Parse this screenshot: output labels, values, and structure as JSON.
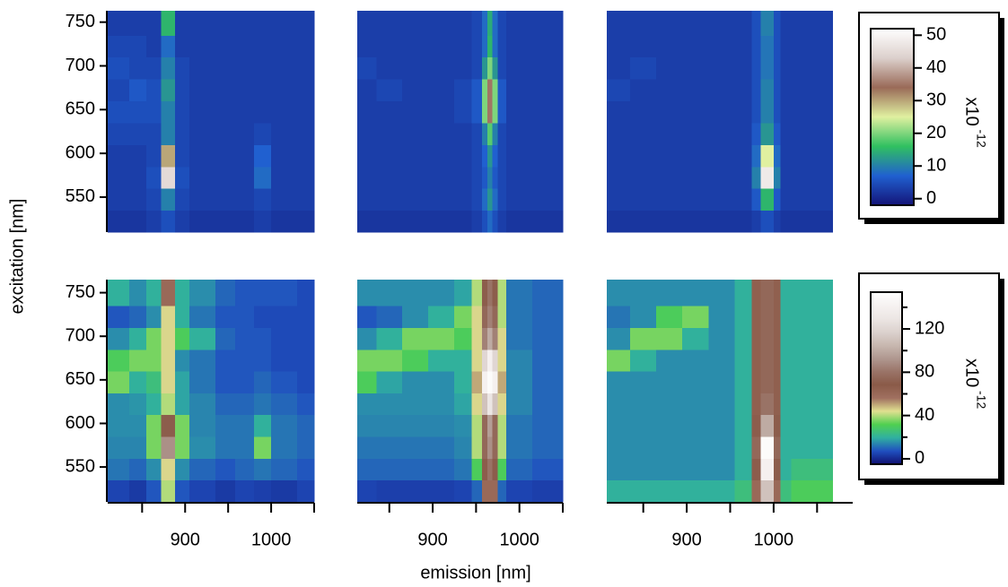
{
  "xlabel": "emission [nm]",
  "ylabel": "excitation [nm]",
  "chart_data": [
    {
      "type": "heatmap",
      "xlim": [
        810,
        1050
      ],
      "ylim": [
        510,
        763
      ],
      "zlim": [
        -2,
        52
      ],
      "colors": [
        "#141478",
        "#2060d0",
        "#30c060",
        "#e0f0a0",
        "#9a6a58",
        "#dcd0cc",
        "#ffffff"
      ],
      "x": [
        810,
        835,
        855,
        872,
        888,
        905,
        935,
        958,
        980,
        1000,
        1030,
        1050
      ],
      "y": [
        510,
        535,
        560,
        585,
        610,
        635,
        660,
        685,
        710,
        735,
        763
      ],
      "yticks": [
        550,
        600,
        650,
        700,
        750
      ],
      "z": [
        [
          2,
          2,
          3,
          5,
          3,
          2,
          2,
          2,
          3,
          2,
          2
        ],
        [
          3,
          3,
          4,
          10,
          4,
          3,
          3,
          3,
          4,
          3,
          3
        ],
        [
          3,
          3,
          5,
          45,
          5,
          3,
          3,
          3,
          8,
          3,
          3
        ],
        [
          3,
          3,
          4,
          30,
          4,
          3,
          3,
          3,
          7,
          3,
          3
        ],
        [
          4,
          4,
          4,
          10,
          4,
          3,
          3,
          3,
          4,
          3,
          3
        ],
        [
          5,
          5,
          5,
          10,
          4,
          3,
          3,
          3,
          3,
          3,
          3
        ],
        [
          4,
          6,
          5,
          12,
          4,
          3,
          3,
          3,
          3,
          3,
          3
        ],
        [
          5,
          4,
          4,
          10,
          4,
          3,
          3,
          3,
          3,
          3,
          3
        ],
        [
          4,
          4,
          3,
          8,
          3,
          3,
          3,
          3,
          3,
          3,
          3
        ],
        [
          3,
          3,
          3,
          15,
          3,
          3,
          3,
          3,
          3,
          3,
          3
        ]
      ]
    },
    {
      "type": "heatmap",
      "xlim": [
        813,
        1050
      ],
      "ylim": [
        510,
        763
      ],
      "zlim": [
        -2,
        52
      ],
      "colors": [
        "#141478",
        "#2060d0",
        "#30c060",
        "#e0f0a0",
        "#9a6a58",
        "#dcd0cc",
        "#ffffff"
      ],
      "x": [
        813,
        835,
        865,
        895,
        925,
        945,
        957,
        963,
        969,
        975,
        985,
        1015,
        1035,
        1050
      ],
      "y": [
        510,
        535,
        560,
        585,
        610,
        635,
        660,
        685,
        710,
        735,
        763
      ],
      "z": [
        [
          2,
          2,
          2,
          2,
          2,
          3,
          5,
          8,
          5,
          3,
          2,
          2,
          2
        ],
        [
          3,
          3,
          3,
          3,
          3,
          4,
          8,
          12,
          8,
          4,
          3,
          3,
          3
        ],
        [
          3,
          3,
          3,
          3,
          3,
          4,
          6,
          10,
          6,
          4,
          3,
          3,
          3
        ],
        [
          3,
          3,
          3,
          3,
          3,
          4,
          7,
          12,
          7,
          4,
          3,
          3,
          3
        ],
        [
          3,
          3,
          3,
          3,
          3,
          4,
          10,
          18,
          10,
          4,
          3,
          3,
          3
        ],
        [
          3,
          3,
          3,
          3,
          4,
          6,
          20,
          35,
          20,
          6,
          3,
          3,
          3
        ],
        [
          3,
          4,
          3,
          3,
          4,
          6,
          20,
          35,
          20,
          6,
          3,
          3,
          3
        ],
        [
          4,
          3,
          3,
          3,
          3,
          4,
          12,
          20,
          12,
          4,
          3,
          3,
          3
        ],
        [
          3,
          3,
          3,
          3,
          3,
          4,
          8,
          15,
          8,
          4,
          3,
          3,
          3
        ],
        [
          3,
          3,
          3,
          3,
          3,
          4,
          8,
          14,
          8,
          4,
          3,
          3,
          3
        ]
      ]
    },
    {
      "type": "heatmap",
      "xlim": [
        808,
        1091
      ],
      "ylim": [
        510,
        763
      ],
      "zlim": [
        -2,
        52
      ],
      "colors": [
        "#141478",
        "#2060d0",
        "#30c060",
        "#e0f0a0",
        "#9a6a58",
        "#dcd0cc",
        "#ffffff"
      ],
      "x": [
        808,
        835,
        865,
        895,
        925,
        955,
        975,
        985,
        993,
        1000,
        1008,
        1020,
        1045,
        1068
      ],
      "y": [
        510,
        535,
        560,
        585,
        610,
        635,
        660,
        685,
        710,
        735,
        763
      ],
      "z": [
        [
          2,
          2,
          2,
          2,
          2,
          2,
          3,
          5,
          5,
          3,
          2,
          2,
          2
        ],
        [
          3,
          3,
          3,
          3,
          3,
          3,
          6,
          15,
          15,
          6,
          3,
          3,
          3
        ],
        [
          3,
          3,
          3,
          3,
          3,
          3,
          10,
          48,
          48,
          10,
          3,
          3,
          3
        ],
        [
          3,
          3,
          3,
          3,
          3,
          3,
          8,
          25,
          25,
          8,
          3,
          3,
          3
        ],
        [
          3,
          3,
          3,
          3,
          3,
          3,
          6,
          12,
          12,
          6,
          3,
          3,
          3
        ],
        [
          3,
          3,
          3,
          3,
          3,
          3,
          5,
          10,
          10,
          5,
          3,
          3,
          3
        ],
        [
          4,
          3,
          3,
          3,
          3,
          3,
          5,
          10,
          10,
          5,
          3,
          3,
          3
        ],
        [
          3,
          4,
          3,
          3,
          3,
          3,
          5,
          9,
          9,
          5,
          3,
          3,
          3
        ],
        [
          3,
          3,
          3,
          3,
          3,
          3,
          5,
          9,
          9,
          5,
          3,
          3,
          3
        ],
        [
          3,
          3,
          3,
          3,
          3,
          3,
          5,
          10,
          10,
          5,
          3,
          3,
          3
        ]
      ]
    },
    {
      "type": "heatmap",
      "xlim": [
        810,
        1050
      ],
      "ylim": [
        510,
        765
      ],
      "zlim": [
        -5,
        154
      ],
      "colors": [
        "#101070",
        "#2050c0",
        "#30b0a0",
        "#50d050",
        "#e0e090",
        "#a07060",
        "#8a5a48",
        "#9a7468",
        "#b09890",
        "#c8b8b0",
        "#dcd2ce",
        "#ece6e4",
        "#f6f2f1",
        "#ffffff"
      ],
      "x": [
        810,
        835,
        855,
        872,
        888,
        905,
        935,
        958,
        980,
        1000,
        1030,
        1050
      ],
      "y": [
        510,
        535,
        560,
        585,
        610,
        635,
        660,
        685,
        710,
        735,
        765
      ],
      "yticks": [
        550,
        600,
        650,
        700,
        750
      ],
      "xticks": [
        900,
        1000
      ],
      "xminor": [
        850,
        950,
        1050
      ],
      "z": [
        [
          5,
          3,
          8,
          40,
          8,
          5,
          3,
          5,
          4,
          3,
          5
        ],
        [
          12,
          10,
          15,
          45,
          15,
          10,
          8,
          10,
          12,
          10,
          8
        ],
        [
          14,
          14,
          35,
          90,
          35,
          15,
          12,
          12,
          35,
          12,
          10
        ],
        [
          15,
          15,
          35,
          70,
          35,
          14,
          12,
          12,
          20,
          12,
          10
        ],
        [
          15,
          16,
          20,
          40,
          18,
          14,
          10,
          10,
          12,
          10,
          8
        ],
        [
          35,
          20,
          25,
          45,
          18,
          12,
          8,
          8,
          10,
          8,
          6
        ],
        [
          30,
          35,
          35,
          45,
          15,
          12,
          8,
          8,
          8,
          6,
          6
        ],
        [
          15,
          20,
          35,
          45,
          30,
          20,
          10,
          8,
          8,
          6,
          6
        ],
        [
          8,
          10,
          15,
          45,
          20,
          12,
          8,
          8,
          6,
          6,
          6
        ],
        [
          20,
          15,
          20,
          60,
          20,
          15,
          10,
          8,
          8,
          8,
          6
        ]
      ]
    },
    {
      "type": "heatmap",
      "xlim": [
        813,
        1050
      ],
      "ylim": [
        510,
        765
      ],
      "zlim": [
        -5,
        154
      ],
      "colors": [
        "#101070",
        "#2050c0",
        "#30b0a0",
        "#50d050",
        "#e0e090",
        "#a07060",
        "#8a5a48",
        "#9a7468",
        "#b09890",
        "#c8b8b0",
        "#dcd2ce",
        "#ece6e4",
        "#f6f2f1",
        "#ffffff"
      ],
      "x": [
        813,
        835,
        865,
        895,
        925,
        945,
        957,
        963,
        969,
        975,
        985,
        1015,
        1035,
        1050
      ],
      "y": [
        510,
        535,
        560,
        585,
        610,
        635,
        660,
        685,
        710,
        735,
        765
      ],
      "xticks": [
        900,
        1000
      ],
      "xminor": [
        850,
        950,
        1050
      ],
      "z": [
        [
          5,
          4,
          4,
          4,
          5,
          10,
          60,
          60,
          60,
          10,
          5,
          4,
          4
        ],
        [
          10,
          10,
          10,
          10,
          12,
          30,
          70,
          80,
          70,
          30,
          10,
          8,
          8
        ],
        [
          12,
          12,
          12,
          12,
          14,
          40,
          75,
          90,
          75,
          40,
          12,
          10,
          10
        ],
        [
          14,
          14,
          14,
          14,
          15,
          40,
          75,
          95,
          75,
          40,
          12,
          10,
          10
        ],
        [
          15,
          15,
          15,
          15,
          18,
          45,
          110,
          130,
          110,
          45,
          14,
          10,
          10
        ],
        [
          30,
          18,
          15,
          15,
          20,
          50,
          140,
          150,
          140,
          50,
          14,
          10,
          10
        ],
        [
          35,
          35,
          30,
          20,
          20,
          45,
          120,
          140,
          120,
          45,
          14,
          10,
          10
        ],
        [
          15,
          20,
          35,
          35,
          30,
          45,
          85,
          100,
          85,
          45,
          12,
          10,
          10
        ],
        [
          8,
          10,
          15,
          20,
          35,
          45,
          75,
          85,
          75,
          40,
          12,
          10,
          10
        ],
        [
          15,
          15,
          15,
          15,
          18,
          40,
          70,
          80,
          70,
          40,
          12,
          10,
          10
        ]
      ]
    },
    {
      "type": "heatmap",
      "xlim": [
        808,
        1091
      ],
      "ylim": [
        510,
        765
      ],
      "zlim": [
        -5,
        154
      ],
      "colors": [
        "#101070",
        "#2050c0",
        "#30b0a0",
        "#50d050",
        "#e0e090",
        "#a07060",
        "#8a5a48",
        "#9a7468",
        "#b09890",
        "#c8b8b0",
        "#dcd2ce",
        "#ece6e4",
        "#f6f2f1",
        "#ffffff"
      ],
      "x": [
        808,
        835,
        865,
        895,
        925,
        955,
        975,
        985,
        993,
        1000,
        1008,
        1020,
        1045,
        1068
      ],
      "y": [
        510,
        535,
        560,
        585,
        610,
        635,
        660,
        685,
        710,
        735,
        765
      ],
      "xticks": [
        900,
        1000
      ],
      "xminor": [
        850,
        950,
        1050
      ],
      "z": [
        [
          20,
          20,
          20,
          20,
          20,
          25,
          60,
          110,
          110,
          60,
          25,
          30,
          30
        ],
        [
          15,
          15,
          15,
          15,
          15,
          20,
          70,
          140,
          140,
          70,
          20,
          25,
          25
        ],
        [
          15,
          15,
          15,
          15,
          15,
          20,
          75,
          150,
          150,
          75,
          20,
          20,
          20
        ],
        [
          15,
          15,
          15,
          15,
          15,
          20,
          70,
          100,
          100,
          70,
          20,
          20,
          20
        ],
        [
          15,
          15,
          15,
          15,
          15,
          20,
          65,
          80,
          80,
          65,
          20,
          20,
          20
        ],
        [
          15,
          15,
          15,
          15,
          15,
          20,
          65,
          75,
          75,
          65,
          20,
          20,
          20
        ],
        [
          35,
          20,
          15,
          15,
          15,
          20,
          65,
          75,
          75,
          65,
          20,
          20,
          20
        ],
        [
          15,
          35,
          35,
          20,
          15,
          20,
          65,
          75,
          75,
          65,
          20,
          20,
          20
        ],
        [
          12,
          15,
          30,
          35,
          15,
          20,
          65,
          75,
          75,
          65,
          20,
          20,
          20
        ],
        [
          15,
          15,
          15,
          15,
          15,
          20,
          65,
          75,
          75,
          65,
          20,
          20,
          20
        ]
      ]
    },
    {
      "type": "colorbar",
      "zlim": [
        -2,
        52
      ],
      "ticks": [
        0,
        10,
        20,
        30,
        40,
        50
      ],
      "colors": [
        "#141478",
        "#2060d0",
        "#30c060",
        "#e0f0a0",
        "#9a6a58",
        "#dcd0cc",
        "#ffffff"
      ],
      "label": "x10",
      "exponent": "-12"
    },
    {
      "type": "colorbar",
      "zlim": [
        -5,
        154
      ],
      "ticks": [
        0,
        40,
        80,
        120
      ],
      "minor": [
        20,
        60,
        100,
        140
      ],
      "colors": [
        "#101070",
        "#2050c0",
        "#30b0a0",
        "#50d050",
        "#e0e090",
        "#a07060",
        "#8a5a48",
        "#9a7468",
        "#b09890",
        "#c8b8b0",
        "#dcd2ce",
        "#ece6e4",
        "#f6f2f1",
        "#ffffff"
      ],
      "label": "x10",
      "exponent": "-12"
    }
  ]
}
